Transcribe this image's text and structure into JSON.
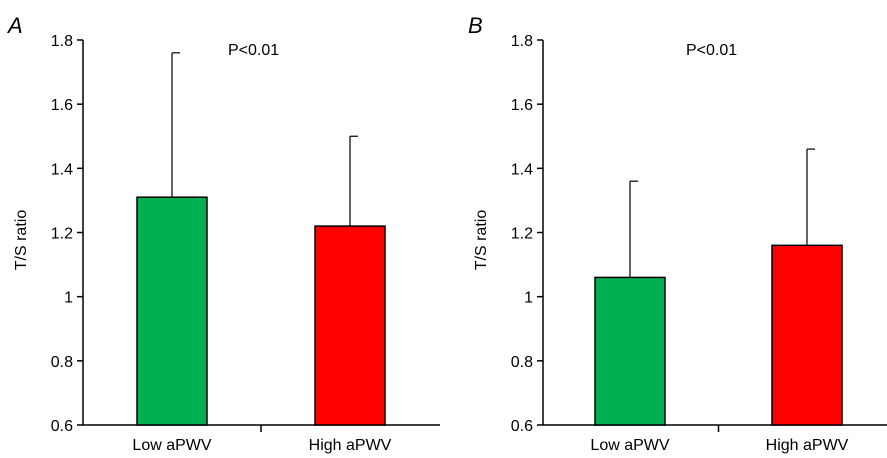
{
  "chart_data": [
    {
      "type": "bar",
      "panel_label": "A",
      "categories": [
        "Low aPWV",
        "High aPWV"
      ],
      "values": [
        1.31,
        1.22
      ],
      "error_upper": [
        1.76,
        1.5
      ],
      "colors": [
        "#00b050",
        "#ff0000"
      ],
      "ylabel": "T/S ratio",
      "xlabel": "",
      "ylim": [
        0.6,
        1.8
      ],
      "yticks": [
        0.6,
        0.8,
        1,
        1.2,
        1.4,
        1.6,
        1.8
      ],
      "ytick_labels": [
        "0.6",
        "0.8",
        "1",
        "1.2",
        "1.4",
        "1.6",
        "1.8"
      ],
      "annotation": "P<0.01",
      "grid": false
    },
    {
      "type": "bar",
      "panel_label": "B",
      "categories": [
        "Low aPWV",
        "High aPWV"
      ],
      "values": [
        1.06,
        1.16
      ],
      "error_upper": [
        1.36,
        1.46
      ],
      "colors": [
        "#00b050",
        "#ff0000"
      ],
      "ylabel": "T/S ratio",
      "xlabel": "",
      "ylim": [
        0.6,
        1.8
      ],
      "yticks": [
        0.6,
        0.8,
        1,
        1.2,
        1.4,
        1.6,
        1.8
      ],
      "ytick_labels": [
        "0.6",
        "0.8",
        "1",
        "1.2",
        "1.4",
        "1.6",
        "1.8"
      ],
      "annotation": "P<0.01",
      "grid": false
    }
  ]
}
